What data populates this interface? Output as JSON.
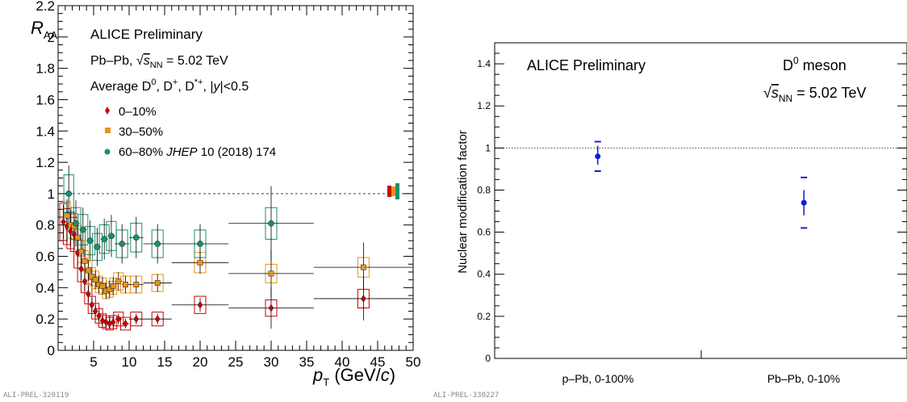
{
  "chart_data": [
    {
      "type": "scatter",
      "title": "",
      "ylabel": "R_AA",
      "xlabel": "p_T (GeV/c)",
      "xlim": [
        0,
        50
      ],
      "ylim": [
        0,
        2.2
      ],
      "xticks": [
        "5",
        "10",
        "15",
        "20",
        "25",
        "30",
        "35",
        "40",
        "45",
        "50"
      ],
      "yticks": [
        "0",
        "0.2",
        "0.4",
        "0.6",
        "0.8",
        "1",
        "1.2",
        "1.4",
        "1.6",
        "1.8",
        "2",
        "2.2"
      ],
      "reference_line": 1,
      "legend_placement": "top-left",
      "annotations": {
        "preliminary": "ALICE Preliminary",
        "system_prefix": "Pb–Pb, √",
        "system_sub": "s",
        "system_subsub": "NN",
        "system_suffix": " = 5.02 TeV",
        "species_text": "Average D⁰, D⁺, D*⁺, |y|<0.5",
        "prel_id": "ALI-PREL-320119"
      },
      "series": [
        {
          "name": "0–10%",
          "color": "#cc0000",
          "marker": "diamond",
          "points": [
            {
              "x": 0.75,
              "y": 0.82,
              "xerr": 0.25
            },
            {
              "x": 1.25,
              "y": 0.79,
              "xerr": 0.25
            },
            {
              "x": 1.75,
              "y": 0.76,
              "xerr": 0.25
            },
            {
              "x": 2.25,
              "y": 0.74,
              "xerr": 0.25
            },
            {
              "x": 2.75,
              "y": 0.62,
              "xerr": 0.25
            },
            {
              "x": 3.25,
              "y": 0.52,
              "xerr": 0.25
            },
            {
              "x": 3.75,
              "y": 0.44,
              "xerr": 0.25
            },
            {
              "x": 4.25,
              "y": 0.36,
              "xerr": 0.25
            },
            {
              "x": 4.75,
              "y": 0.29,
              "xerr": 0.25
            },
            {
              "x": 5.25,
              "y": 0.25,
              "xerr": 0.25
            },
            {
              "x": 5.75,
              "y": 0.22,
              "xerr": 0.25
            },
            {
              "x": 6.25,
              "y": 0.19,
              "xerr": 0.25
            },
            {
              "x": 6.75,
              "y": 0.18,
              "xerr": 0.25
            },
            {
              "x": 7.25,
              "y": 0.17,
              "xerr": 0.25
            },
            {
              "x": 7.75,
              "y": 0.18,
              "xerr": 0.25
            },
            {
              "x": 8.5,
              "y": 0.2,
              "xerr": 0.5
            },
            {
              "x": 9.5,
              "y": 0.17,
              "xerr": 0.5
            },
            {
              "x": 11,
              "y": 0.2,
              "xerr": 1
            },
            {
              "x": 14,
              "y": 0.2,
              "xerr": 2
            },
            {
              "x": 20,
              "y": 0.29,
              "xerr": 4
            },
            {
              "x": 30,
              "y": 0.27,
              "xerr": 6
            },
            {
              "x": 43,
              "y": 0.33,
              "xerr": 7
            }
          ]
        },
        {
          "name": "30–50%",
          "color": "#e8931a",
          "marker": "square",
          "points": [
            {
              "x": 1.25,
              "y": 0.86,
              "xerr": 0.25
            },
            {
              "x": 1.75,
              "y": 0.8,
              "xerr": 0.25
            },
            {
              "x": 2.25,
              "y": 0.79,
              "xerr": 0.25
            },
            {
              "x": 2.75,
              "y": 0.72,
              "xerr": 0.25
            },
            {
              "x": 3.25,
              "y": 0.63,
              "xerr": 0.25
            },
            {
              "x": 3.75,
              "y": 0.57,
              "xerr": 0.25
            },
            {
              "x": 4.25,
              "y": 0.51,
              "xerr": 0.25
            },
            {
              "x": 4.75,
              "y": 0.47,
              "xerr": 0.25
            },
            {
              "x": 5.25,
              "y": 0.45,
              "xerr": 0.25
            },
            {
              "x": 5.75,
              "y": 0.42,
              "xerr": 0.25
            },
            {
              "x": 6.25,
              "y": 0.41,
              "xerr": 0.25
            },
            {
              "x": 6.75,
              "y": 0.38,
              "xerr": 0.25
            },
            {
              "x": 7.25,
              "y": 0.39,
              "xerr": 0.25
            },
            {
              "x": 7.75,
              "y": 0.41,
              "xerr": 0.25
            },
            {
              "x": 8.5,
              "y": 0.44,
              "xerr": 0.5
            },
            {
              "x": 9.5,
              "y": 0.42,
              "xerr": 0.5
            },
            {
              "x": 11,
              "y": 0.42,
              "xerr": 1
            },
            {
              "x": 14,
              "y": 0.43,
              "xerr": 2
            },
            {
              "x": 20,
              "y": 0.56,
              "xerr": 4
            },
            {
              "x": 30,
              "y": 0.49,
              "xerr": 6
            },
            {
              "x": 43,
              "y": 0.53,
              "xerr": 7
            }
          ]
        },
        {
          "name": "60–80% JHEP 10 (2018) 174",
          "color": "#1a8f6a",
          "marker": "circle",
          "points": [
            {
              "x": 1.5,
              "y": 1.0,
              "xerr": 0.5
            },
            {
              "x": 2.5,
              "y": 0.81,
              "xerr": 0.5
            },
            {
              "x": 3.5,
              "y": 0.77,
              "xerr": 0.5
            },
            {
              "x": 4.5,
              "y": 0.7,
              "xerr": 0.5
            },
            {
              "x": 5.5,
              "y": 0.66,
              "xerr": 0.5
            },
            {
              "x": 6.5,
              "y": 0.71,
              "xerr": 0.5
            },
            {
              "x": 7.5,
              "y": 0.73,
              "xerr": 0.5
            },
            {
              "x": 9,
              "y": 0.68,
              "xerr": 1
            },
            {
              "x": 11,
              "y": 0.72,
              "xerr": 1
            },
            {
              "x": 14,
              "y": 0.68,
              "xerr": 2
            },
            {
              "x": 20,
              "y": 0.68,
              "xerr": 4
            },
            {
              "x": 30,
              "y": 0.81,
              "xerr": 6
            }
          ]
        }
      ]
    },
    {
      "type": "scatter",
      "title": "",
      "ylabel": "Nuclear modification factor",
      "xlabel": "",
      "ylim": [
        0,
        1.5
      ],
      "yticks": [
        "0",
        "0.2",
        "0.4",
        "0.6",
        "0.8",
        "1",
        "1.2",
        "1.4"
      ],
      "categories": [
        "p–Pb, 0-100%",
        "Pb–Pb, 0-10%"
      ],
      "reference_line": 1,
      "annotations": {
        "preliminary": "ALICE Preliminary",
        "meson_base": "D",
        "meson_sup": "0",
        "meson_suffix": " meson",
        "energy_prefix": "√",
        "energy_sub": "s",
        "energy_subsub": "NN",
        "energy_suffix": " = 5.02 TeV",
        "prel_id": "ALI-PREL-330227"
      },
      "series": [
        {
          "color": "#1020cc",
          "marker": "circle",
          "points": [
            {
              "category": "p–Pb, 0-100%",
              "y": 0.96,
              "stat_lo": 0.92,
              "stat_hi": 1.01,
              "sys_lo": 0.89,
              "sys_hi": 1.03
            },
            {
              "category": "Pb–Pb, 0-10%",
              "y": 0.74,
              "stat_lo": 0.68,
              "stat_hi": 0.8,
              "sys_lo": 0.62,
              "sys_hi": 0.86
            }
          ]
        }
      ]
    }
  ]
}
